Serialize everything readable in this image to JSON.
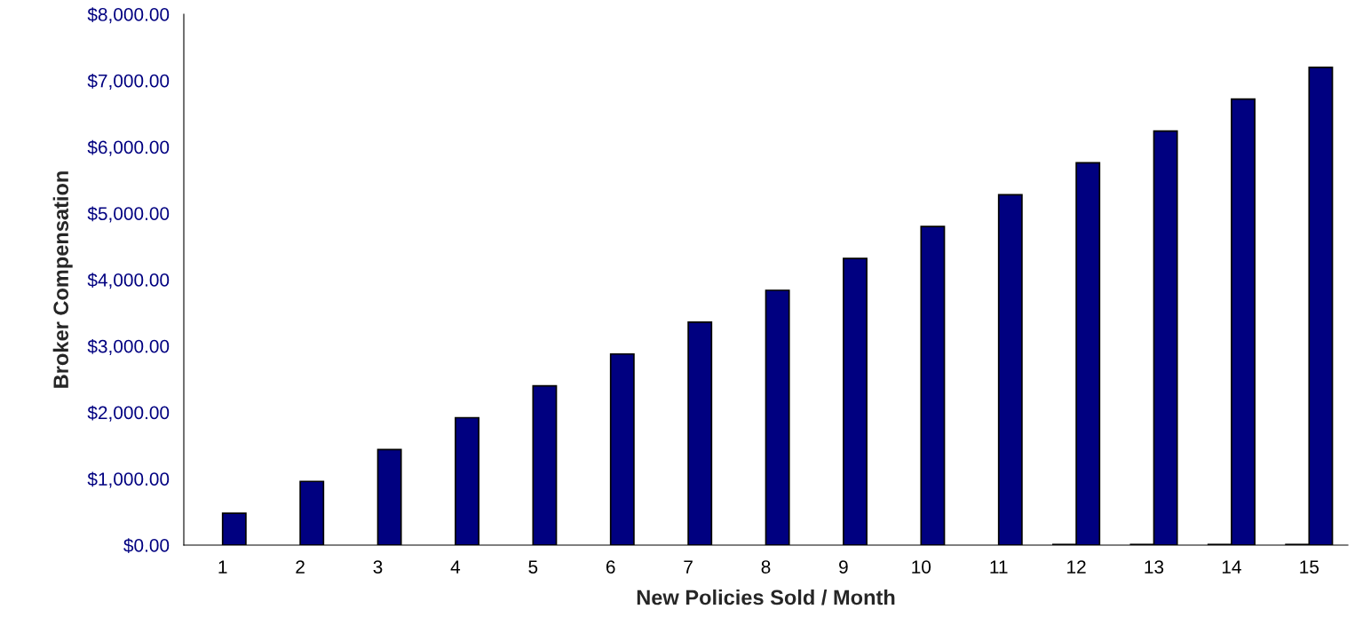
{
  "chart_data": {
    "type": "bar",
    "xlabel": "New Policies Sold / Month",
    "ylabel": "Broker Compensation",
    "categories": [
      "1",
      "2",
      "3",
      "4",
      "5",
      "6",
      "7",
      "8",
      "9",
      "10",
      "11",
      "12",
      "13",
      "14",
      "15"
    ],
    "series": [
      {
        "color": "#000000",
        "values": [
          null,
          null,
          null,
          null,
          null,
          null,
          null,
          null,
          null,
          null,
          null,
          10,
          10,
          10,
          10
        ]
      },
      {
        "color": "#000080",
        "values": [
          480,
          960,
          1440,
          1920,
          2400,
          2880,
          3360,
          3840,
          4320,
          4800,
          5280,
          5760,
          6240,
          6720,
          7200
        ]
      }
    ],
    "ylim": [
      0,
      8000
    ],
    "yticks": [
      {
        "value": 0,
        "label": "$0.00"
      },
      {
        "value": 1000,
        "label": "$1,000.00"
      },
      {
        "value": 2000,
        "label": "$2,000.00"
      },
      {
        "value": 3000,
        "label": "$3,000.00"
      },
      {
        "value": 4000,
        "label": "$4,000.00"
      },
      {
        "value": 5000,
        "label": "$5,000.00"
      },
      {
        "value": 6000,
        "label": "$6,000.00"
      },
      {
        "value": 7000,
        "label": "$7,000.00"
      },
      {
        "value": 8000,
        "label": "$8,000.00"
      }
    ],
    "grid": false
  }
}
